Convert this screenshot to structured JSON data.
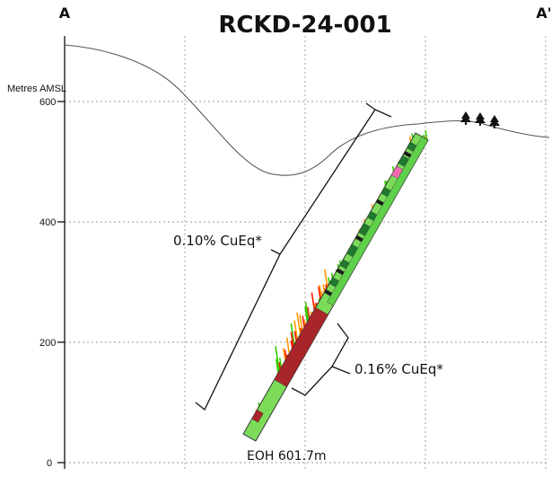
{
  "section": {
    "title": "RCKD-24-001",
    "left_label": "A",
    "right_label": "A'",
    "y_axis_label": "Metres AMSL",
    "y_ticks": [
      "600",
      "400",
      "200",
      "0"
    ],
    "annotations": {
      "upper_interval": "0.10% CuEq*",
      "lower_interval": "0.16% CuEq*",
      "end_of_hole": "EOH 601.7m"
    },
    "colors": {
      "trace_green": "#7cdc5a",
      "trace_dark": "#1f7a2e",
      "trace_red": "#a8262a",
      "trace_pink": "#f06bb3",
      "high_grade": "#ff1a00",
      "mid_grade": "#ff9a00",
      "low_grade": "#33cc00",
      "topography": "#555555",
      "grid": "#999999"
    },
    "icons": [
      "tree-icon",
      "tree-icon",
      "tree-icon"
    ]
  }
}
